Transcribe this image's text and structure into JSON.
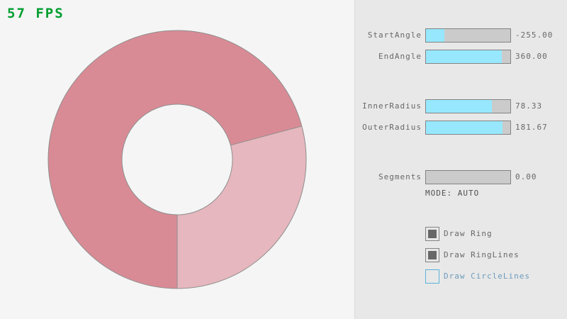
{
  "fps": {
    "label": "57 FPS",
    "color": "#009E2F"
  },
  "colors": {
    "background": "#F5F5F5",
    "panel_background": "#E8E8E8",
    "panel_edge": "#DADADA",
    "gui_border": "#838383",
    "gui_text": "#686868",
    "slider_track": "#CBCBCB",
    "slider_fill": "#97E8FF",
    "check_square": "#686868",
    "focus_border": "#5BB2D9",
    "focus_text": "#6C9BBC"
  },
  "ring": {
    "dark_fill": "#D98B95",
    "light_fill": "#E6B7BE",
    "outline": "#8E8E8E",
    "start_angle": -255,
    "end_angle": 360,
    "inner_radius": 78.33,
    "outer_radius": 181.67
  },
  "panel": {
    "sliders": [
      {
        "label": "StartAngle",
        "value": "-255.00",
        "fill_pct": 21.7
      },
      {
        "label": "EndAngle",
        "value": "360.00",
        "fill_pct": 90.0
      },
      {
        "label": "InnerRadius",
        "value": "78.33",
        "fill_pct": 78.3
      },
      {
        "label": "OuterRadius",
        "value": "181.67",
        "fill_pct": 90.8
      },
      {
        "label": "Segments",
        "value": "0.00",
        "fill_pct": 0
      }
    ],
    "mode_text": "MODE: AUTO",
    "checkboxes": [
      {
        "label": "Draw Ring",
        "checked": true,
        "focused": false
      },
      {
        "label": "Draw RingLines",
        "checked": true,
        "focused": false
      },
      {
        "label": "Draw CircleLines",
        "checked": false,
        "focused": true
      }
    ]
  }
}
